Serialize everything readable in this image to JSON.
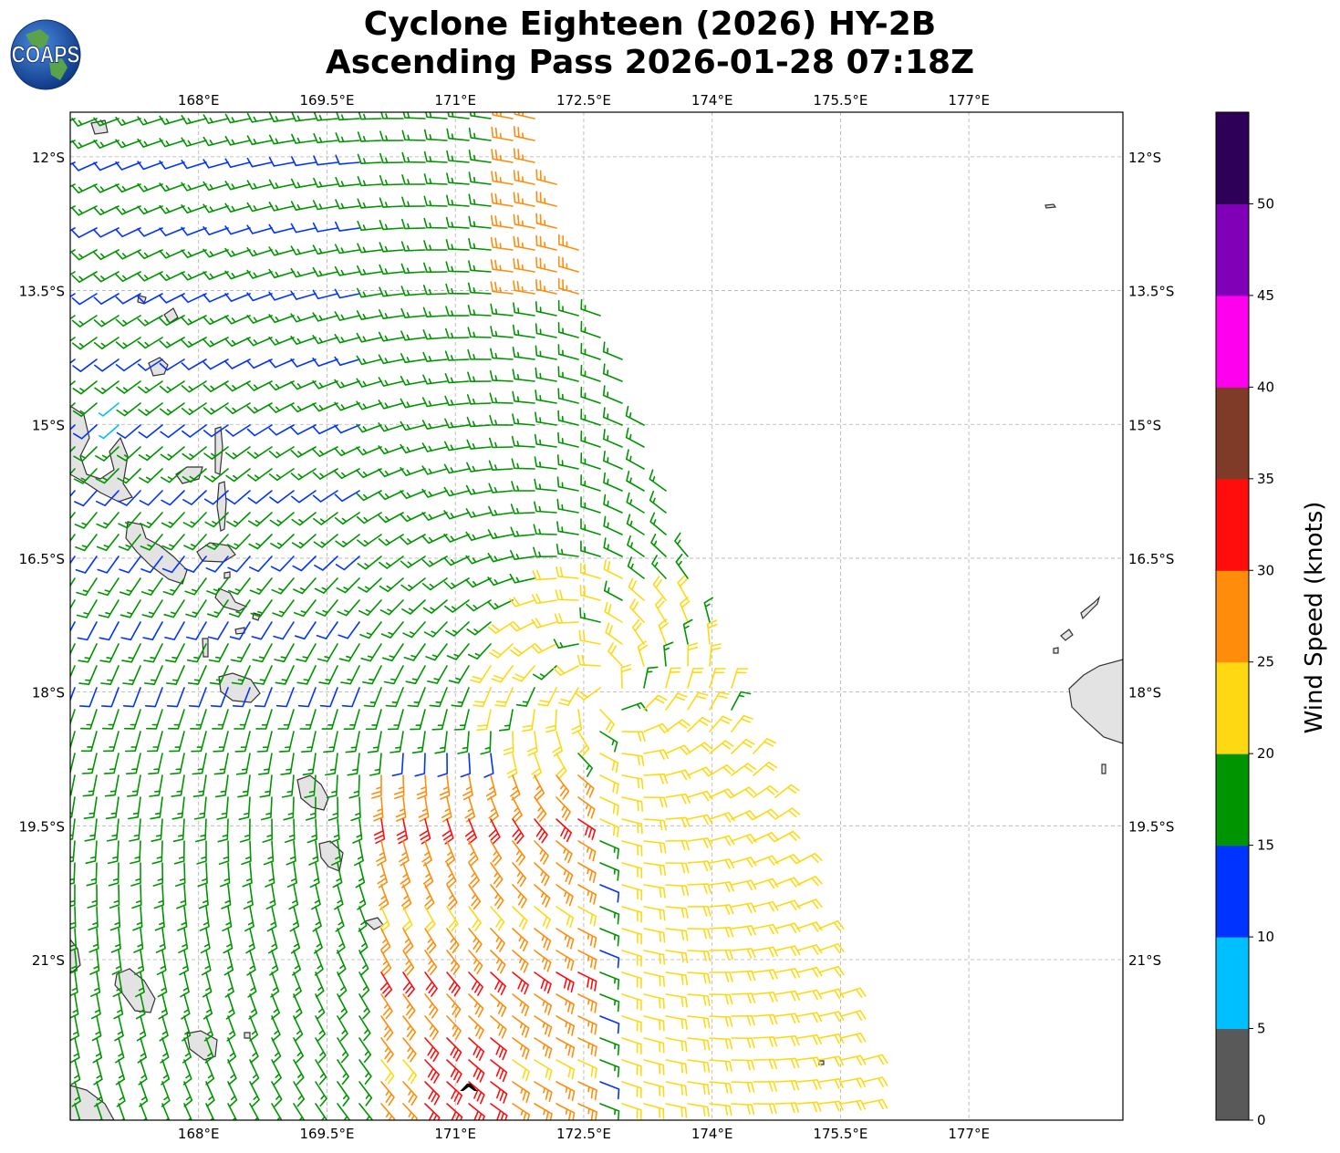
{
  "header": {
    "title_line1": "Cyclone Eighteen (2026) HY-2B",
    "title_line2": "Ascending Pass 2026-01-28 07:18Z",
    "logo_text": "COAPS"
  },
  "map": {
    "lon_range": [
      166.5,
      178.8
    ],
    "lat_range": [
      -22.8,
      -11.5
    ],
    "lon_ticks": [
      "168°E",
      "169.5°E",
      "171°E",
      "172.5°E",
      "174°E",
      "175.5°E",
      "177°E"
    ],
    "lon_tick_values": [
      168,
      169.5,
      171,
      172.5,
      174,
      175.5,
      177
    ],
    "lat_ticks": [
      "12°S",
      "13.5°S",
      "15°S",
      "16.5°S",
      "18°S",
      "19.5°S",
      "21°S"
    ],
    "lat_tick_values": [
      -12,
      -13.5,
      -15,
      -16.5,
      -18,
      -19.5,
      -21
    ],
    "storm_center": {
      "lon": 170.85,
      "lat": -22.45,
      "marker": "^"
    }
  },
  "colorbar": {
    "label": "Wind Speed (knots)",
    "ticks": [
      "0",
      "5",
      "10",
      "15",
      "20",
      "25",
      "30",
      "35",
      "40",
      "45",
      "50"
    ],
    "bins": [
      {
        "min": 0,
        "max": 5,
        "color": "#595959"
      },
      {
        "min": 5,
        "max": 10,
        "color": "#00bfff"
      },
      {
        "min": 10,
        "max": 15,
        "color": "#0033ff"
      },
      {
        "min": 15,
        "max": 20,
        "color": "#009400"
      },
      {
        "min": 20,
        "max": 25,
        "color": "#ffd814"
      },
      {
        "min": 25,
        "max": 30,
        "color": "#ff8c0a"
      },
      {
        "min": 30,
        "max": 35,
        "color": "#ff0d0d"
      },
      {
        "min": 35,
        "max": 40,
        "color": "#7f3a28"
      },
      {
        "min": 40,
        "max": 45,
        "color": "#ff00ee"
      },
      {
        "min": 45,
        "max": 50,
        "color": "#8000b8"
      },
      {
        "min": 50,
        "max": 55,
        "color": "#2e0058"
      }
    ]
  }
}
